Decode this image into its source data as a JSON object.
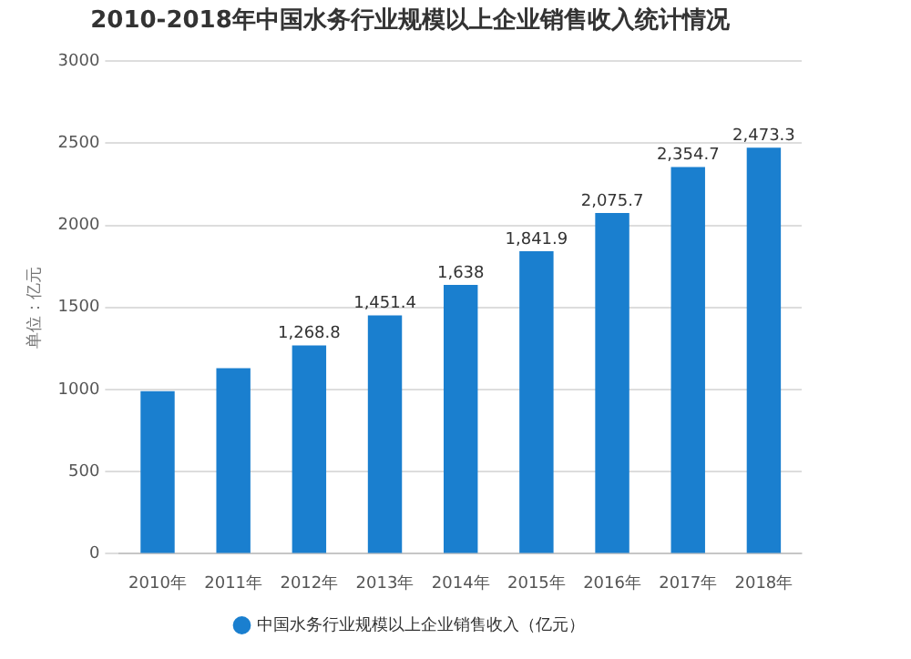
{
  "chart_data": {
    "type": "bar",
    "title": "2010-2018年中国水务行业规模以上企业销售收入统计情况",
    "ylabel": "单位：亿元",
    "categories": [
      "2010年",
      "2011年",
      "2012年",
      "2013年",
      "2014年",
      "2015年",
      "2016年",
      "2017年",
      "2018年"
    ],
    "series": [
      {
        "name": "中国水务行业规模以上企业销售收入（亿元）",
        "color": "#1a7fcf",
        "values": [
          990,
          1130,
          1268.8,
          1451.4,
          1638,
          1841.9,
          2075.7,
          2354.7,
          2473.3
        ],
        "value_labels": [
          null,
          null,
          "1,268.8",
          "1,451.4",
          "1,638",
          "1,841.9",
          "2,075.7",
          "2,354.7",
          "2,473.3"
        ]
      }
    ],
    "ylim": [
      0,
      3000
    ],
    "yticks": [
      0,
      500,
      1000,
      1500,
      2000,
      2500,
      3000
    ],
    "grid": "y",
    "legend": "bottom"
  }
}
